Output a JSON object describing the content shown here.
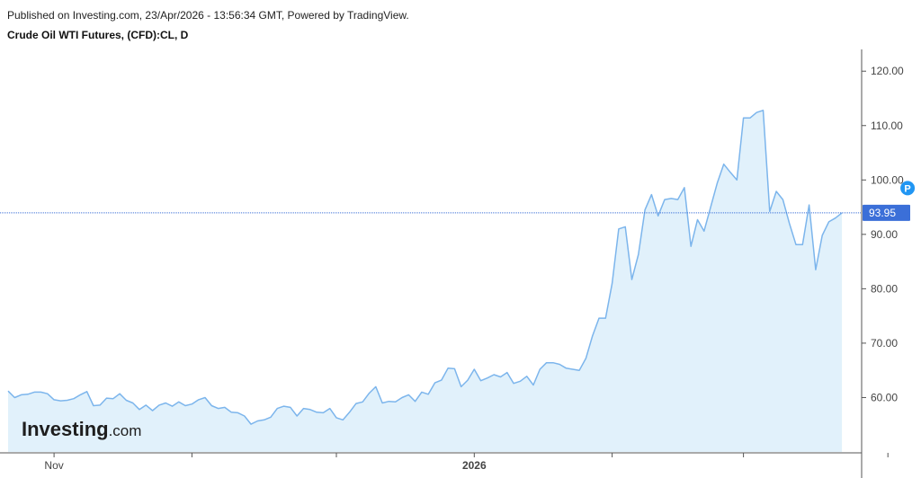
{
  "header": {
    "published": "Published on Investing.com, 23/Apr/2026 - 13:56:34 GMT, Powered by TradingView.",
    "title": "Crude Oil WTI Futures, (CFD):CL, D"
  },
  "logo": {
    "brand": "Investing",
    "suffix": ".com"
  },
  "marker": {
    "label": "P"
  },
  "colors": {
    "line": "#7cb5ec",
    "fill": "#e1f1fb",
    "price_line": "#3b6fd8",
    "badge": "#3b6fd8",
    "marker": "#2196f3",
    "axis": "#555555"
  },
  "chart_data": {
    "type": "area",
    "x_unit": "trading day index (0 = first bar, ~Oct 23 2025; 126 = Apr 23 2026)",
    "ylim": [
      50,
      124
    ],
    "y_ticks": [
      "60.00",
      "70.00",
      "80.00",
      "90.00",
      "100.00",
      "110.00",
      "120.00"
    ],
    "x_ticks": [
      {
        "label": "Nov",
        "x": 7,
        "bold": false
      },
      {
        "label": "",
        "x": 28,
        "bold": false
      },
      {
        "label": "",
        "x": 50,
        "bold": false
      },
      {
        "label": "2026",
        "x": 71,
        "bold": true
      },
      {
        "label": "",
        "x": 92,
        "bold": false
      },
      {
        "label": "",
        "x": 112,
        "bold": false
      },
      {
        "label": "",
        "x": 134,
        "bold": false
      },
      {
        "label": "",
        "x": 155,
        "bold": false
      }
    ],
    "last_price": "93.95",
    "last_value": 93.95,
    "marker_at": {
      "x": 137,
      "y": 98.5
    },
    "values": [
      61.2,
      60.0,
      60.5,
      60.6,
      61.0,
      61.0,
      60.7,
      59.6,
      59.4,
      59.5,
      59.8,
      60.5,
      61.1,
      58.5,
      58.6,
      59.9,
      59.8,
      60.7,
      59.5,
      59.0,
      57.8,
      58.6,
      57.6,
      58.6,
      59.0,
      58.4,
      59.2,
      58.5,
      58.8,
      59.6,
      60.0,
      58.5,
      58.0,
      58.2,
      57.3,
      57.2,
      56.6,
      55.1,
      55.7,
      55.9,
      56.4,
      58.0,
      58.4,
      58.2,
      56.6,
      58.0,
      57.8,
      57.3,
      57.2,
      58.0,
      56.3,
      55.9,
      57.3,
      58.9,
      59.2,
      60.8,
      62.0,
      59.0,
      59.3,
      59.2,
      60.0,
      60.5,
      59.3,
      61.0,
      60.6,
      62.7,
      63.2,
      65.4,
      65.3,
      62.0,
      63.2,
      65.2,
      63.1,
      63.6,
      64.2,
      63.8,
      64.6,
      62.6,
      63.0,
      63.9,
      62.3,
      65.2,
      66.4,
      66.4,
      66.1,
      65.4,
      65.2,
      65.0,
      67.2,
      71.3,
      74.6,
      74.6,
      81.0,
      91.0,
      91.4,
      81.7,
      86.3,
      94.5,
      97.3,
      93.4,
      96.4,
      96.6,
      96.4,
      98.6,
      87.8,
      92.7,
      90.6,
      95.0,
      99.4,
      102.9,
      101.4,
      100.0,
      111.4,
      111.4,
      112.4,
      112.8,
      94.2,
      97.9,
      96.4,
      92.0,
      88.1,
      88.1,
      95.4,
      83.5,
      89.8,
      92.3,
      93.0,
      93.95
    ]
  }
}
